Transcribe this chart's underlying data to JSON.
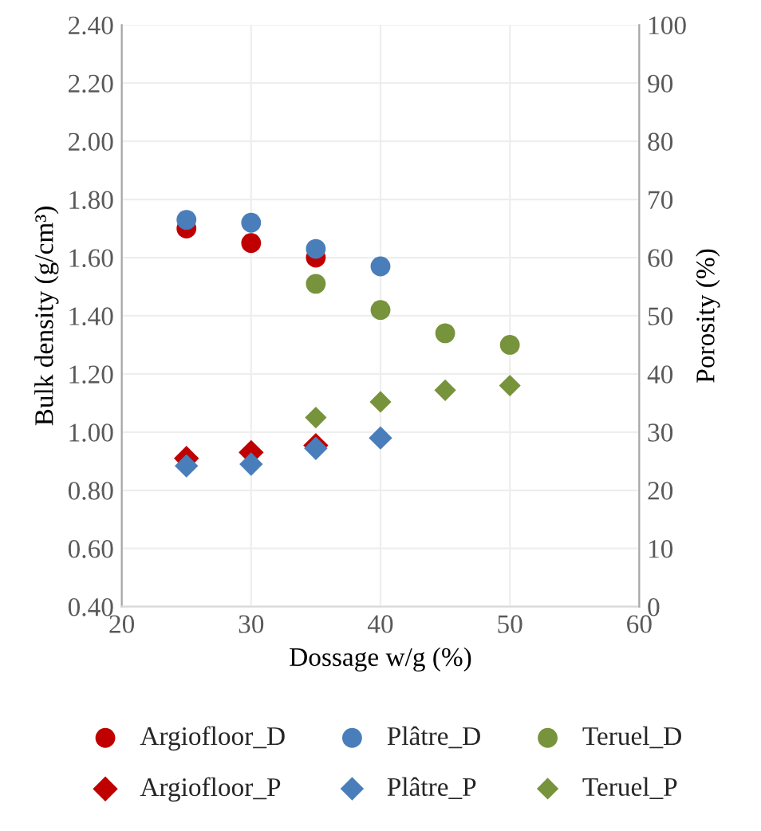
{
  "chart_data": {
    "type": "scatter",
    "xlabel": "Dossage w/g (%)",
    "ylabel": "Bulk density (g/cm³)",
    "y2label": "Porosity (%)",
    "xlim": [
      20,
      60
    ],
    "xticks": [
      20,
      30,
      40,
      50,
      60
    ],
    "ylim": [
      0.4,
      2.4
    ],
    "yticks": [
      {
        "value": 0.4,
        "label": "0.40"
      },
      {
        "value": 0.6,
        "label": "0.60"
      },
      {
        "value": 0.8,
        "label": "0.80"
      },
      {
        "value": 1.0,
        "label": "1.00"
      },
      {
        "value": 1.2,
        "label": "1.20"
      },
      {
        "value": 1.4,
        "label": "1.40"
      },
      {
        "value": 1.6,
        "label": "1.60"
      },
      {
        "value": 1.8,
        "label": "1.80"
      },
      {
        "value": 2.0,
        "label": "2.00"
      },
      {
        "value": 2.2,
        "label": "2.20"
      },
      {
        "value": 2.4,
        "label": "2.40"
      }
    ],
    "y2lim": [
      0,
      100
    ],
    "y2ticks": [
      0,
      10,
      20,
      30,
      40,
      50,
      60,
      70,
      80,
      90,
      100
    ],
    "grid": true,
    "legend": "bottom",
    "series": [
      {
        "name": "Argiofloor_D",
        "color": "#c00000",
        "marker": "circle",
        "x": [
          25,
          30,
          35
        ],
        "values": [
          1.7,
          1.65,
          1.6
        ]
      },
      {
        "name": "Plâtre_D",
        "color": "#4a7ebb",
        "marker": "circle",
        "x": [
          25,
          30,
          35,
          40
        ],
        "values": [
          1.73,
          1.72,
          1.63,
          1.57
        ]
      },
      {
        "name": "Teruel_D",
        "color": "#77933c",
        "marker": "circle",
        "x": [
          35,
          40,
          45,
          50
        ],
        "values": [
          1.51,
          1.42,
          1.34,
          1.3
        ]
      },
      {
        "name": "Argiofloor_P",
        "color": "#c00000",
        "marker": "diamond",
        "axis": "y2",
        "x": [
          25,
          30,
          35
        ],
        "values": [
          25.5,
          26.5,
          27.7
        ]
      },
      {
        "name": "Plâtre_P",
        "color": "#4a7ebb",
        "marker": "diamond",
        "axis": "y2",
        "x": [
          25,
          30,
          35,
          40
        ],
        "values": [
          24.2,
          24.5,
          27.2,
          29.0
        ]
      },
      {
        "name": "Teruel_P",
        "color": "#77933c",
        "marker": "diamond",
        "axis": "y2",
        "x": [
          35,
          40,
          45,
          50
        ],
        "values": [
          32.5,
          35.2,
          37.2,
          38.0
        ]
      }
    ]
  }
}
